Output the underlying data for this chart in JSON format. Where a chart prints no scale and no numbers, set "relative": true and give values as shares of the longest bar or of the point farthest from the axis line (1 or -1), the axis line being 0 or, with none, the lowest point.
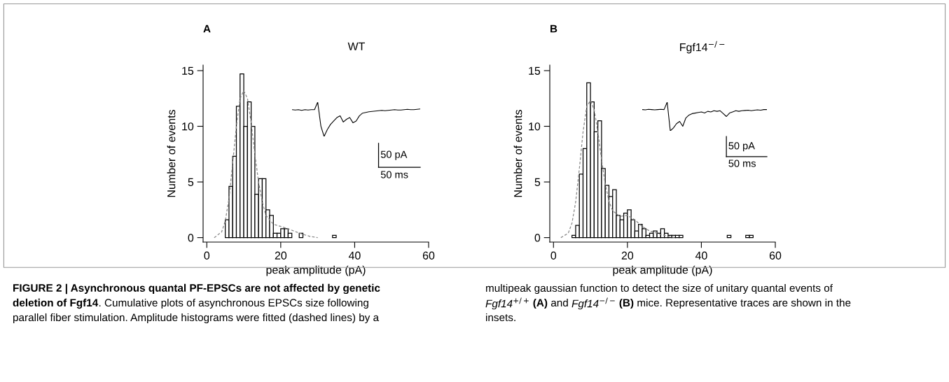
{
  "chart_data": [
    {
      "type": "histogram",
      "title": "WT",
      "xlabel": "peak amplitude (pA)",
      "ylabel": "Number of events",
      "color": "#ffffff",
      "bins": [
        5,
        6,
        7,
        8,
        9,
        10,
        11,
        12,
        13,
        14,
        15,
        16,
        17,
        18,
        19,
        20,
        21,
        22,
        23,
        24,
        25,
        26,
        27,
        28,
        29,
        30,
        31,
        32,
        33,
        34,
        35,
        36
      ],
      "values": [
        1.6,
        4.6,
        7.3,
        11.8,
        14.7,
        10.0,
        12.2,
        10.0,
        3.9,
        5.3,
        5.3,
        2.5,
        2.0,
        0.4,
        0.4,
        0.8,
        0.8,
        0.4,
        0,
        0,
        0.4,
        0,
        0,
        0,
        0,
        0,
        0,
        0,
        0,
        0.2,
        0
      ],
      "series": [
        {
          "type": "line",
          "color": "#888888",
          "line_style": "dashed",
          "x": [
            2,
            4,
            5,
            6,
            7,
            8,
            9,
            10,
            11,
            12,
            13,
            14,
            15,
            16,
            18,
            20,
            22,
            25,
            28,
            30
          ],
          "values": [
            0,
            0.5,
            1.5,
            3.5,
            6.7,
            10,
            12.5,
            13.2,
            12.5,
            10.3,
            7.5,
            5,
            3.2,
            2,
            1.2,
            1,
            0.8,
            0.4,
            0.1,
            0
          ]
        }
      ],
      "xlim": [
        -1,
        60
      ],
      "ylim": [
        -0.4,
        15.5
      ],
      "xticks": [
        0,
        20,
        40,
        60
      ],
      "yticks": [
        0,
        5,
        10,
        15
      ],
      "grid": false,
      "legend": false,
      "annotations": [
        "A",
        "FIGURE 2 | Asynchronous quantal PF-EPSCs are not affected by genetic",
        "deletion of Fgf14",
        ". Cumulative plots of asynchronous EPSCs size following",
        "parallel fiber stimulation. Amplitude histograms were fitted (dashed lines) by a",
        "multipeak gaussian function to detect the size of unitary quantal events of",
        "Fgf14$^{+/+}$",
        " (A)",
        " and ",
        "Fgf14$^{−/−}$",
        " (B)",
        " mice. Representative traces are shown in the",
        "insets."
      ]
    },
    {
      "type": "line",
      "relative": true,
      "color": "#000000",
      "categories": [
        null,
        null,
        null,
        null,
        null,
        null,
        null,
        null,
        null,
        null,
        null,
        null,
        null,
        null,
        null,
        null,
        null,
        null,
        null,
        null,
        null,
        null,
        null,
        null,
        null,
        null,
        null,
        null,
        null,
        null,
        null,
        null,
        null,
        null,
        null,
        null,
        null,
        null,
        null,
        null,
        null
      ],
      "values": [
        0.78,
        0.77,
        0.78,
        0.76,
        0.78,
        0.77,
        0.78,
        0.78,
        1.0,
        0.3,
        0.0,
        0.2,
        0.35,
        0.45,
        0.55,
        0.6,
        0.42,
        0.5,
        0.55,
        0.4,
        0.45,
        0.6,
        0.68,
        0.7,
        0.72,
        0.73,
        0.74,
        0.75,
        0.76,
        0.75,
        0.76,
        0.77,
        0.78,
        0.77,
        0.77,
        0.78,
        0.79,
        0.78,
        0.78,
        0.79,
        0.8
      ],
      "annotations": [
        "50 pA",
        "50 ms"
      ]
    },
    {
      "type": "histogram",
      "title": "Fgf14$^{−/−}$",
      "xlabel": "peak amplitude (pA)",
      "ylabel": "Number of events",
      "color": "#ffffff",
      "bins": [
        5,
        6,
        7,
        8,
        9,
        10,
        11,
        12,
        13,
        14,
        15,
        16,
        17,
        18,
        19,
        20,
        21,
        22,
        23,
        24,
        25,
        26,
        27,
        28,
        29,
        30,
        31,
        32,
        33,
        34,
        35,
        36,
        37,
        38,
        39,
        40,
        41,
        42,
        43,
        44,
        45,
        46,
        47,
        48,
        49,
        50,
        51,
        52,
        53,
        54,
        55
      ],
      "values": [
        0.2,
        1.1,
        5.7,
        8.0,
        13.9,
        12.2,
        9.5,
        10.5,
        6.2,
        4.7,
        3.7,
        4.3,
        2.0,
        1.6,
        2.2,
        2.5,
        1.6,
        0.6,
        1.2,
        0.8,
        0.2,
        0.4,
        0.6,
        0.4,
        0.8,
        0.4,
        0.2,
        0.2,
        0.2,
        0.2,
        0,
        0,
        0,
        0,
        0,
        0,
        0,
        0,
        0,
        0,
        0,
        0,
        0.2,
        0,
        0,
        0,
        0,
        0.2,
        0.2,
        0
      ],
      "series": [
        {
          "type": "line",
          "color": "#888888",
          "line_style": "dashed",
          "x": [
            2,
            4,
            5,
            6,
            7,
            8,
            9,
            10,
            11,
            12,
            13,
            14,
            15,
            16,
            18,
            20,
            22,
            24,
            26,
            28,
            30,
            33
          ],
          "values": [
            0,
            0.4,
            1.3,
            3.2,
            6.2,
            9.5,
            11.8,
            12.3,
            11.5,
            9.5,
            7,
            4.8,
            3.3,
            2.4,
            1.9,
            2.0,
            1.6,
            1.0,
            0.6,
            0.4,
            0.2,
            0
          ]
        }
      ],
      "xlim": [
        -1,
        60
      ],
      "ylim": [
        -0.4,
        15.5
      ],
      "xticks": [
        0,
        20,
        40,
        60
      ],
      "yticks": [
        0,
        5,
        10,
        15
      ],
      "grid": false,
      "legend": false,
      "annotations": [
        "B"
      ]
    },
    {
      "type": "line",
      "relative": true,
      "color": "#000000",
      "categories": [
        null,
        null,
        null,
        null,
        null,
        null,
        null,
        null,
        null,
        null,
        null,
        null,
        null,
        null,
        null,
        null,
        null,
        null,
        null,
        null,
        null,
        null,
        null,
        null,
        null,
        null,
        null,
        null,
        null,
        null,
        null,
        null,
        null,
        null,
        null,
        null,
        null,
        null,
        null,
        null,
        null
      ],
      "values": [
        0.74,
        0.73,
        0.75,
        0.74,
        0.73,
        0.74,
        0.75,
        0.74,
        1.0,
        0.0,
        0.1,
        0.25,
        0.33,
        0.16,
        0.45,
        0.55,
        0.6,
        0.62,
        0.64,
        0.66,
        0.62,
        0.68,
        0.66,
        0.7,
        0.68,
        0.7,
        0.6,
        0.5,
        0.62,
        0.66,
        0.7,
        0.68,
        0.7,
        0.71,
        0.72,
        0.7,
        0.72,
        0.73,
        0.72,
        0.74,
        0.74
      ],
      "annotations": [
        "50 pA",
        "50 ms"
      ]
    }
  ]
}
